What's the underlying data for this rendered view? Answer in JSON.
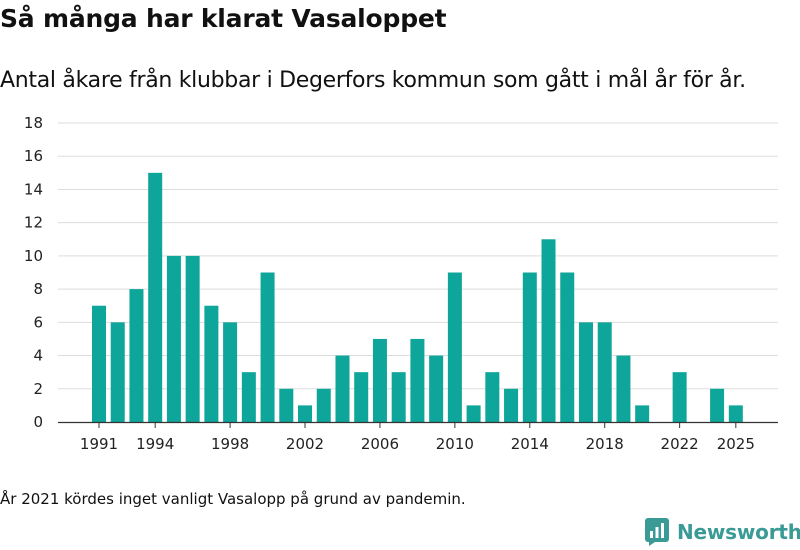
{
  "title": "Så många har klarat Vasaloppet",
  "subtitle": "Antal åkare från klubbar i Degerfors kommun som gått i mål år för år.",
  "footnote": "År 2021 kördes inget vanligt Vasalopp på grund av pandemin.",
  "brand": {
    "name": "Newsworthy",
    "logo_icon": "bar-chart-logo-icon",
    "color": "#3a9a96"
  },
  "colors": {
    "bar": "#0ea59a",
    "grid": "#dddddd",
    "axis": "#333333"
  },
  "chart_data": {
    "type": "bar",
    "title": "Så många har klarat Vasaloppet",
    "xlabel": "",
    "ylabel": "",
    "ylim": [
      0,
      18
    ],
    "yticks": [
      0,
      2,
      4,
      6,
      8,
      10,
      12,
      14,
      16,
      18
    ],
    "xtick_labels": [
      "1991",
      "1994",
      "1998",
      "2002",
      "2006",
      "2010",
      "2014",
      "2018",
      "2022",
      "2025"
    ],
    "categories": [
      "1991",
      "1992",
      "1993",
      "1994",
      "1995",
      "1996",
      "1997",
      "1998",
      "1999",
      "2000",
      "2001",
      "2002",
      "2003",
      "2004",
      "2005",
      "2006",
      "2007",
      "2008",
      "2009",
      "2010",
      "2011",
      "2012",
      "2013",
      "2014",
      "2015",
      "2016",
      "2017",
      "2018",
      "2019",
      "2020",
      "2021",
      "2022",
      "2023",
      "2024",
      "2025"
    ],
    "values": [
      7,
      6,
      8,
      15,
      10,
      10,
      7,
      6,
      3,
      9,
      2,
      1,
      2,
      4,
      3,
      5,
      3,
      5,
      4,
      9,
      1,
      3,
      2,
      9,
      11,
      9,
      6,
      6,
      4,
      1,
      0,
      3,
      0,
      2,
      1
    ]
  }
}
